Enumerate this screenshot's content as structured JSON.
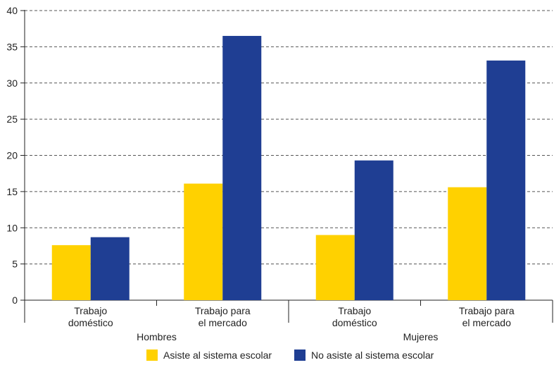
{
  "chart_data": {
    "type": "bar",
    "groups": [
      {
        "label": "Hombres",
        "categories": [
          "Trabajo\ndoméstico",
          "Trabajo para\nel mercado"
        ]
      },
      {
        "label": "Mujeres",
        "categories": [
          "Trabajo\ndoméstico",
          "Trabajo para\nel mercado"
        ]
      }
    ],
    "categories": [
      "Trabajo doméstico",
      "Trabajo para el mercado",
      "Trabajo doméstico",
      "Trabajo para el mercado"
    ],
    "category_lines": [
      [
        "Trabajo",
        "doméstico"
      ],
      [
        "Trabajo para",
        "el mercado"
      ],
      [
        "Trabajo",
        "doméstico"
      ],
      [
        "Trabajo para",
        "el mercado"
      ]
    ],
    "series": [
      {
        "name": "Asiste al sistema escolar",
        "color": "#FFD100",
        "values": [
          7.6,
          16.1,
          9.0,
          15.6
        ]
      },
      {
        "name": "No asiste al sistema escolar",
        "color": "#1F3E93",
        "values": [
          8.7,
          36.5,
          19.3,
          33.1
        ]
      }
    ],
    "ylim": [
      0,
      40
    ],
    "yticks": [
      0,
      5,
      10,
      15,
      20,
      25,
      30,
      35,
      40
    ],
    "grid": true,
    "legend_position": "bottom"
  }
}
